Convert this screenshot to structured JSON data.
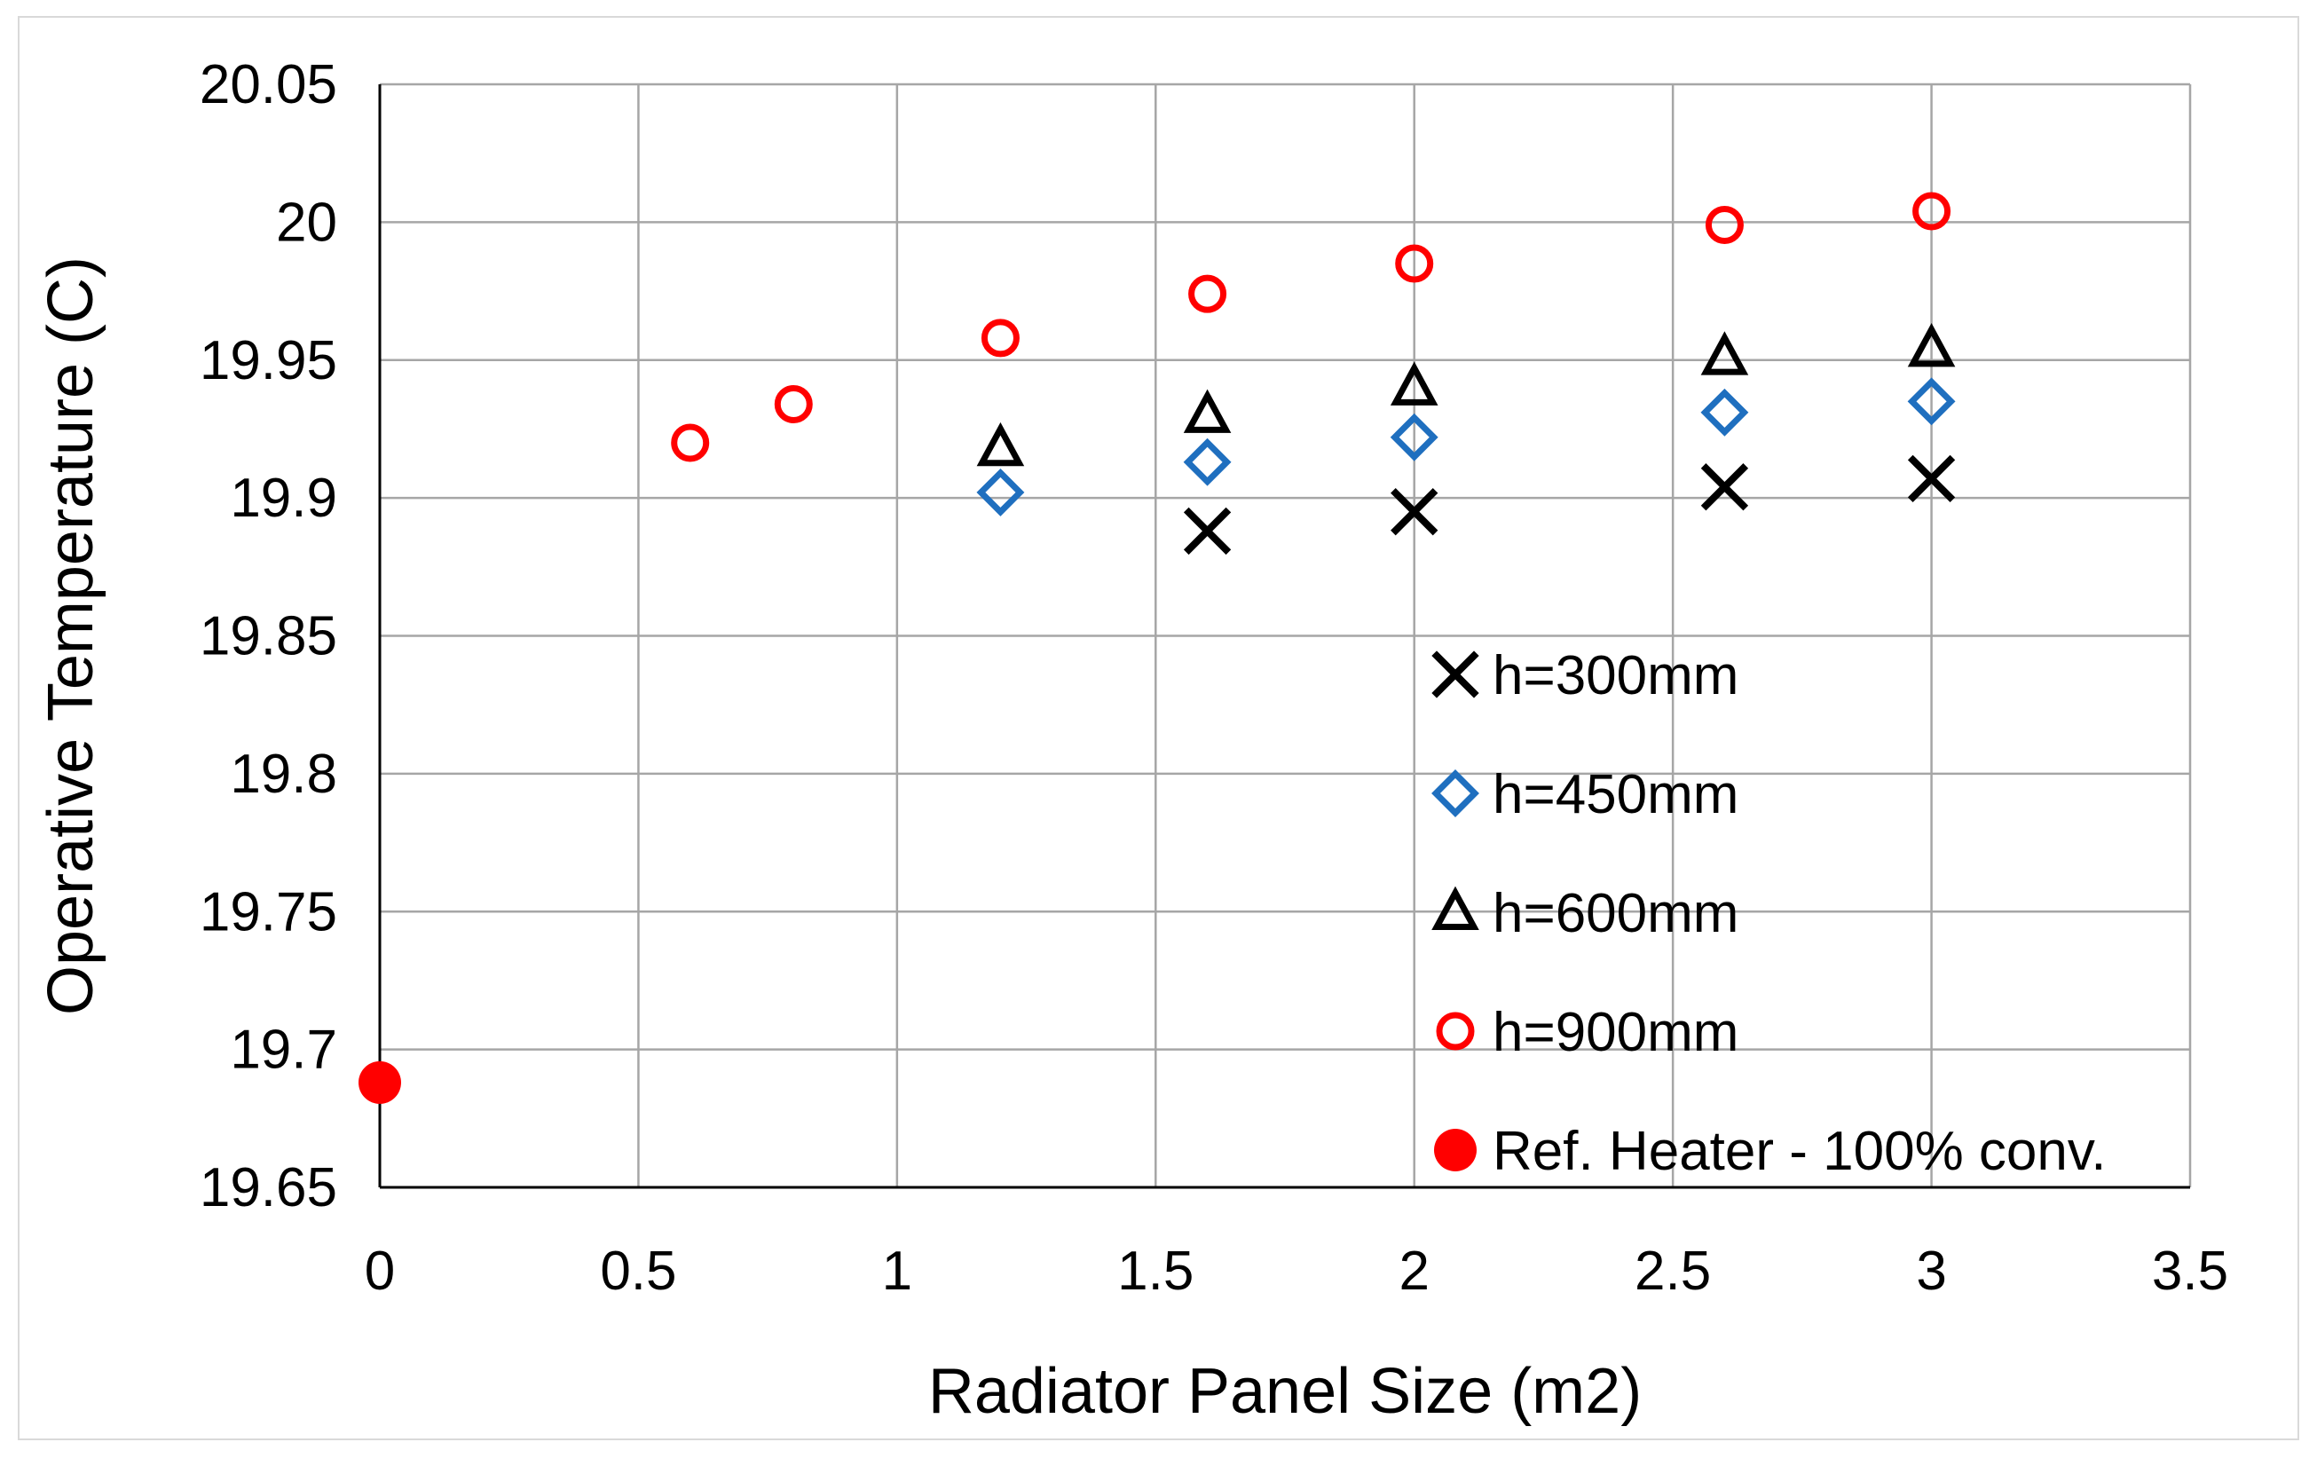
{
  "chart_data": {
    "type": "scatter",
    "title": "",
    "xlabel": "Radiator Panel Size (m2)",
    "ylabel": "Operative Temperature (C)",
    "xlim": [
      0,
      3.5
    ],
    "ylim": [
      19.65,
      20.05
    ],
    "x_ticks": [
      "0",
      "0.5",
      "1",
      "1.5",
      "2",
      "2.5",
      "3",
      "3.5"
    ],
    "y_ticks": [
      "19.65",
      "19.7",
      "19.75",
      "19.8",
      "19.85",
      "19.9",
      "19.95",
      "20",
      "20.05"
    ],
    "grid": true,
    "legend_position": "bottom-right inside plot",
    "series": [
      {
        "name": "h=300mm",
        "marker": "x",
        "color": "#000000",
        "x": [
          1.6,
          2.0,
          2.6,
          3.0
        ],
        "y": [
          19.888,
          19.895,
          19.904,
          19.907
        ]
      },
      {
        "name": "h=450mm",
        "marker": "diamond-open",
        "color": "#1f6fbf",
        "x": [
          1.2,
          1.6,
          2.0,
          2.6,
          3.0
        ],
        "y": [
          19.902,
          19.913,
          19.922,
          19.931,
          19.935
        ]
      },
      {
        "name": "h=600mm",
        "marker": "triangle-open",
        "color": "#000000",
        "x": [
          1.2,
          1.6,
          2.0,
          2.6,
          3.0
        ],
        "y": [
          19.918,
          19.93,
          19.94,
          19.951,
          19.954
        ]
      },
      {
        "name": "h=900mm",
        "marker": "circle-open",
        "color": "#ff0000",
        "x": [
          0.6,
          0.8,
          1.2,
          1.6,
          2.0,
          2.6,
          3.0
        ],
        "y": [
          19.92,
          19.934,
          19.958,
          19.974,
          19.985,
          19.999,
          20.004
        ]
      },
      {
        "name": "Ref. Heater - 100% conv.",
        "marker": "circle-filled",
        "color": "#ff0000",
        "x": [
          0
        ],
        "y": [
          19.688
        ]
      }
    ]
  }
}
